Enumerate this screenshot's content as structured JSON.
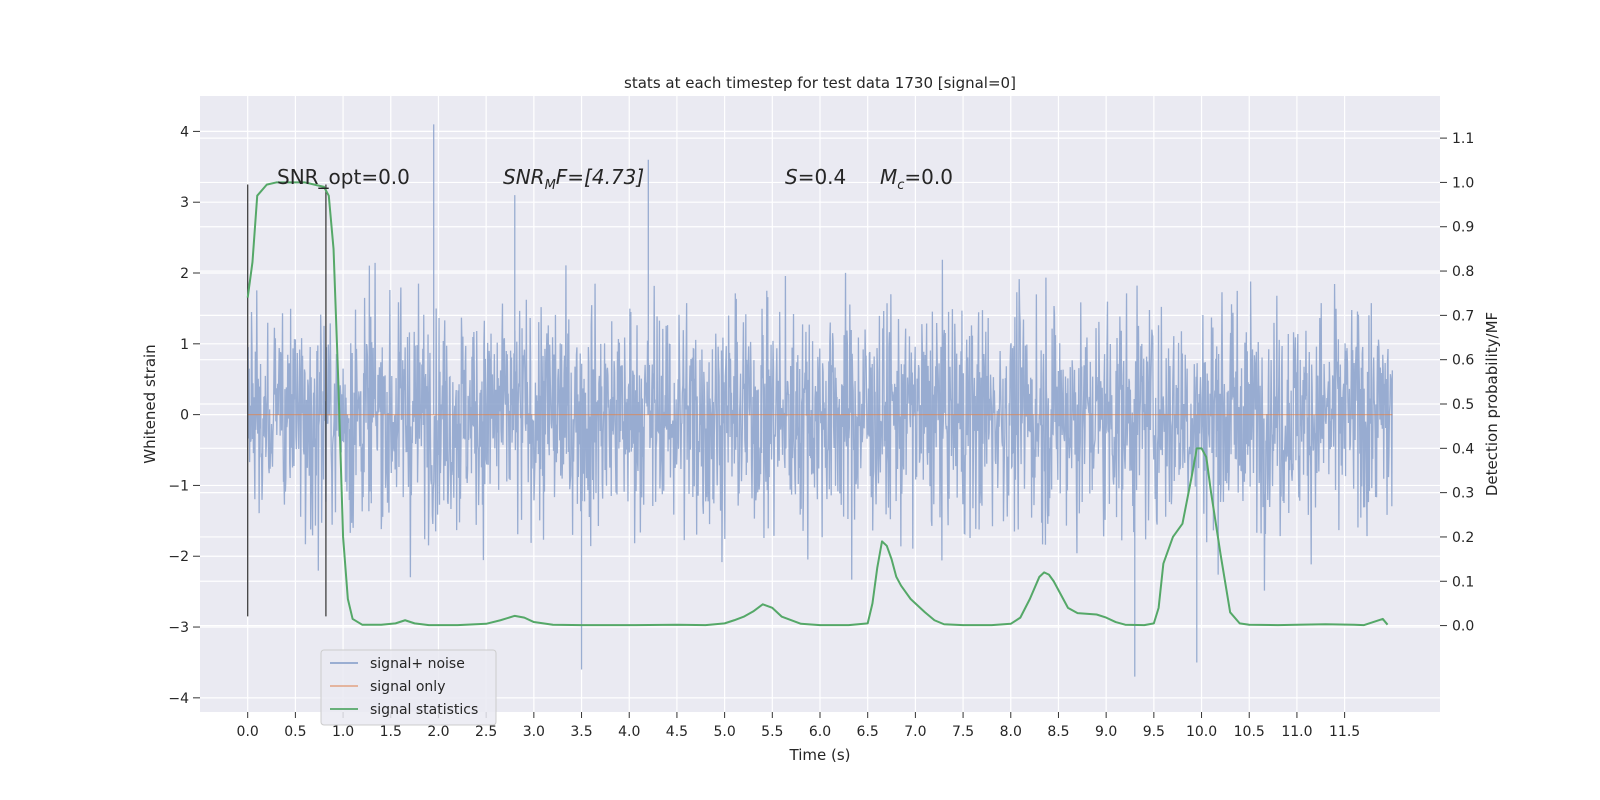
{
  "chart_data": {
    "type": "line",
    "title": "stats at each timestep for test data 1730 [signal=0]",
    "xlabel": "Time (s)",
    "ylabel": "Whitened strain",
    "ylabel_right": "Detection probability/MF",
    "xlim": [
      -0.5,
      12.5
    ],
    "ylim": [
      -4.2,
      4.5
    ],
    "ylim_right": [
      -0.195,
      1.195
    ],
    "x_ticks": [
      0.0,
      0.5,
      1.0,
      1.5,
      2.0,
      2.5,
      3.0,
      3.5,
      4.0,
      4.5,
      5.0,
      5.5,
      6.0,
      6.5,
      7.0,
      7.5,
      8.0,
      8.5,
      9.0,
      9.5,
      10.0,
      10.5,
      11.0,
      11.5
    ],
    "x_tick_labels": [
      "0.0",
      "0.5",
      "1.0",
      "1.5",
      "2.0",
      "2.5",
      "3.0",
      "3.5",
      "4.0",
      "4.5",
      "5.0",
      "5.5",
      "6.0",
      "6.5",
      "7.0",
      "7.5",
      "8.0",
      "8.5",
      "9.0",
      "9.5",
      "10.0",
      "10.5",
      "11.0",
      "11.5"
    ],
    "y_ticks": [
      -4,
      -3,
      -2,
      -1,
      0,
      1,
      2,
      3,
      4
    ],
    "y_tick_labels": [
      "−4",
      "−3",
      "−2",
      "−1",
      "0",
      "1",
      "2",
      "3",
      "4"
    ],
    "y_ticks_right": [
      0.0,
      0.1,
      0.2,
      0.3,
      0.4,
      0.5,
      0.6,
      0.7,
      0.8,
      0.9,
      1.0,
      1.1
    ],
    "y_tick_labels_right": [
      "0.0",
      "0.1",
      "0.2",
      "0.3",
      "0.4",
      "0.5",
      "0.6",
      "0.7",
      "0.8",
      "0.9",
      "1.0",
      "1.1"
    ],
    "grid": true,
    "legend_position": "lower-left",
    "colors": {
      "background": "#eaeaf2",
      "grid": "#ffffff",
      "noise": "#8fa5cd",
      "signal": "#dd8452",
      "statistics": "#55a868",
      "marker": "#404040"
    },
    "annotations": [
      {
        "text": "SNR_opt=0.0"
      },
      {
        "text": "SNR_MF=[4.73]",
        "main": "SNR",
        "sub": "M",
        "rest": "F=[4.73]"
      },
      {
        "text": "S=0.4",
        "main": "S",
        "rest": "=0.4"
      },
      {
        "text": "M_c=0.0",
        "main": "M",
        "sub": "c",
        "rest": "=0.0"
      }
    ],
    "vertical_markers": [
      0.0,
      0.82
    ],
    "series": [
      {
        "name": "signal+ noise",
        "axis": "left",
        "description_type": "noise",
        "x_range": [
          0.0,
          12.0
        ],
        "typical_band": [
          -1.6,
          1.45
        ],
        "envelope_max_approx": 3.5,
        "envelope_min_approx": -3.5,
        "notable_peaks": [
          [
            1.95,
            4.1
          ],
          [
            2.8,
            3.1
          ],
          [
            4.2,
            3.6
          ],
          [
            9.3,
            -3.7
          ],
          [
            9.95,
            -3.5
          ],
          [
            3.5,
            -3.6
          ]
        ]
      },
      {
        "name": "signal only",
        "axis": "left",
        "x": [
          0.0,
          12.0
        ],
        "y": [
          0.0,
          0.0
        ]
      },
      {
        "name": "signal statistics",
        "axis": "right",
        "x": [
          0.0,
          0.05,
          0.1,
          0.2,
          0.3,
          0.4,
          0.5,
          0.6,
          0.7,
          0.8,
          0.85,
          0.9,
          0.95,
          1.0,
          1.05,
          1.1,
          1.2,
          1.4,
          1.55,
          1.65,
          1.75,
          1.9,
          2.2,
          2.5,
          2.65,
          2.8,
          2.9,
          3.0,
          3.2,
          3.5,
          4.0,
          4.5,
          4.8,
          5.0,
          5.1,
          5.2,
          5.3,
          5.4,
          5.5,
          5.6,
          5.8,
          6.0,
          6.3,
          6.5,
          6.55,
          6.6,
          6.65,
          6.7,
          6.75,
          6.8,
          6.85,
          6.95,
          7.1,
          7.2,
          7.3,
          7.5,
          7.8,
          8.0,
          8.1,
          8.2,
          8.3,
          8.35,
          8.4,
          8.45,
          8.5,
          8.6,
          8.7,
          8.9,
          9.0,
          9.1,
          9.2,
          9.4,
          9.5,
          9.55,
          9.6,
          9.7,
          9.8,
          9.9,
          9.95,
          10.0,
          10.05,
          10.1,
          10.2,
          10.3,
          10.4,
          10.5,
          10.8,
          11.0,
          11.3,
          11.6,
          11.7,
          11.8,
          11.9,
          11.95
        ],
        "y": [
          0.74,
          0.82,
          0.97,
          0.995,
          1.0,
          1.0,
          1.0,
          1.0,
          0.995,
          0.99,
          0.97,
          0.85,
          0.55,
          0.2,
          0.06,
          0.015,
          0.002,
          0.002,
          0.005,
          0.012,
          0.005,
          0.001,
          0.001,
          0.004,
          0.012,
          0.022,
          0.018,
          0.008,
          0.002,
          0.001,
          0.001,
          0.002,
          0.001,
          0.005,
          0.012,
          0.02,
          0.032,
          0.048,
          0.04,
          0.02,
          0.004,
          0.001,
          0.001,
          0.005,
          0.05,
          0.13,
          0.19,
          0.18,
          0.15,
          0.11,
          0.09,
          0.06,
          0.03,
          0.012,
          0.003,
          0.001,
          0.001,
          0.004,
          0.018,
          0.06,
          0.11,
          0.12,
          0.115,
          0.1,
          0.08,
          0.04,
          0.028,
          0.025,
          0.018,
          0.008,
          0.002,
          0.001,
          0.005,
          0.04,
          0.14,
          0.2,
          0.23,
          0.34,
          0.4,
          0.4,
          0.38,
          0.3,
          0.16,
          0.03,
          0.005,
          0.002,
          0.001,
          0.002,
          0.003,
          0.002,
          0.001,
          0.008,
          0.015,
          0.002
        ]
      }
    ]
  },
  "legend": {
    "items": [
      "signal+ noise",
      "signal only",
      "signal statistics"
    ]
  }
}
